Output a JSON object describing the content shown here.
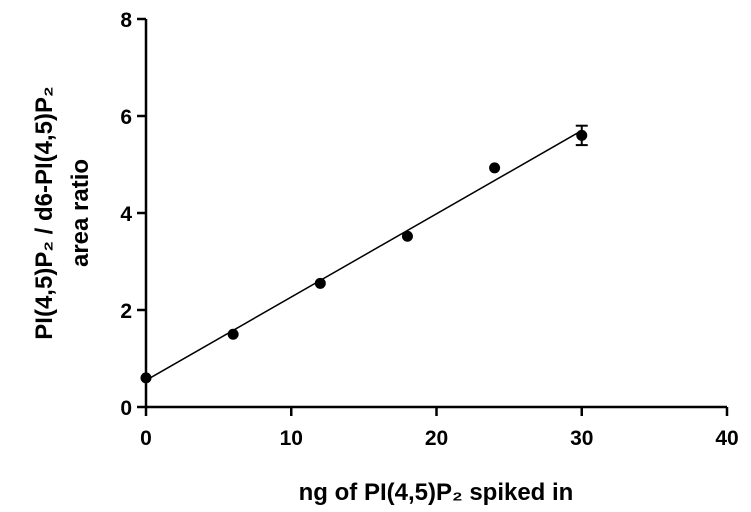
{
  "chart_data": {
    "type": "scatter",
    "x_label": "ng of PI(4,5)P₂ spiked in",
    "y_label": [
      "PI(4,5)P₂ / d6-PI(4,5)P₂",
      "area ratio"
    ],
    "series": [
      {
        "x": [
          0,
          6,
          12,
          18,
          24,
          30
        ],
        "values": [
          0.6,
          1.5,
          2.55,
          3.52,
          4.93,
          5.6
        ],
        "errors": [
          null,
          null,
          null,
          null,
          null,
          0.2
        ],
        "color": "#000000"
      }
    ],
    "fit_line": {
      "x": [
        0,
        30
      ],
      "y": [
        0.55,
        5.7
      ]
    },
    "xlim": [
      0,
      40
    ],
    "xticks": [
      0,
      10,
      20,
      30,
      40
    ],
    "ylim": [
      0,
      8
    ],
    "yticks": [
      0,
      2,
      4,
      6,
      8
    ]
  }
}
